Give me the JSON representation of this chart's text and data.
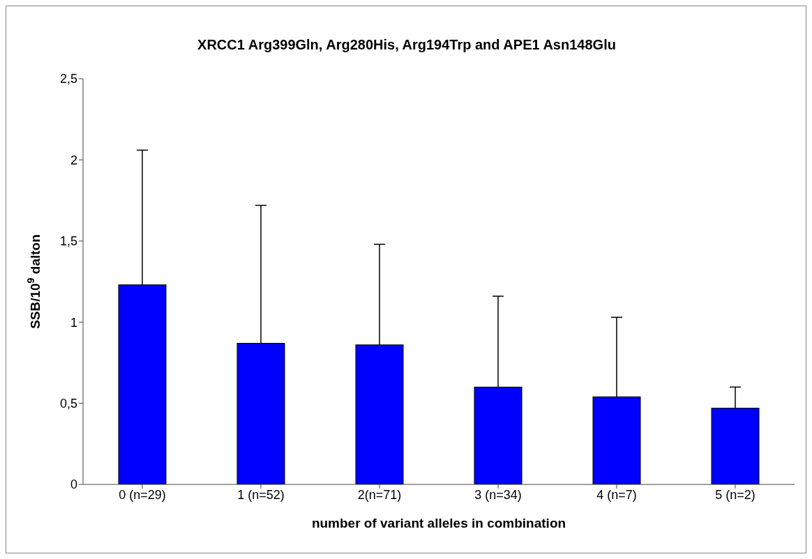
{
  "chart_data": {
    "type": "bar",
    "title": "XRCC1 Arg399Gln, Arg280His, Arg194Trp and APE1 Asn148Glu",
    "xlabel": "number of variant alleles in combination",
    "ylabel": "SSB/10$^{9}$ dalton",
    "categories": [
      "0 (n=29)",
      "1 (n=52)",
      "2(n=71)",
      "3 (n=34)",
      "4 (n=7)",
      "5 (n=2)"
    ],
    "values": [
      1.23,
      0.87,
      0.86,
      0.6,
      0.54,
      0.47
    ],
    "errors": [
      [
        1.23,
        2.06
      ],
      [
        0.87,
        1.72
      ],
      [
        0.86,
        1.48
      ],
      [
        0.6,
        1.16
      ],
      [
        0.54,
        1.03
      ],
      [
        0.47,
        0.6
      ]
    ],
    "color": "#0000ff",
    "ylim": [
      0,
      2.5
    ],
    "yticks": [
      0,
      {
        "value": 0.5,
        "label": "0,5"
      },
      1,
      {
        "value": 1.5,
        "label": "1,5"
      },
      2,
      {
        "value": 2.5,
        "label": "2,5"
      }
    ],
    "grid": false,
    "legend": false
  }
}
